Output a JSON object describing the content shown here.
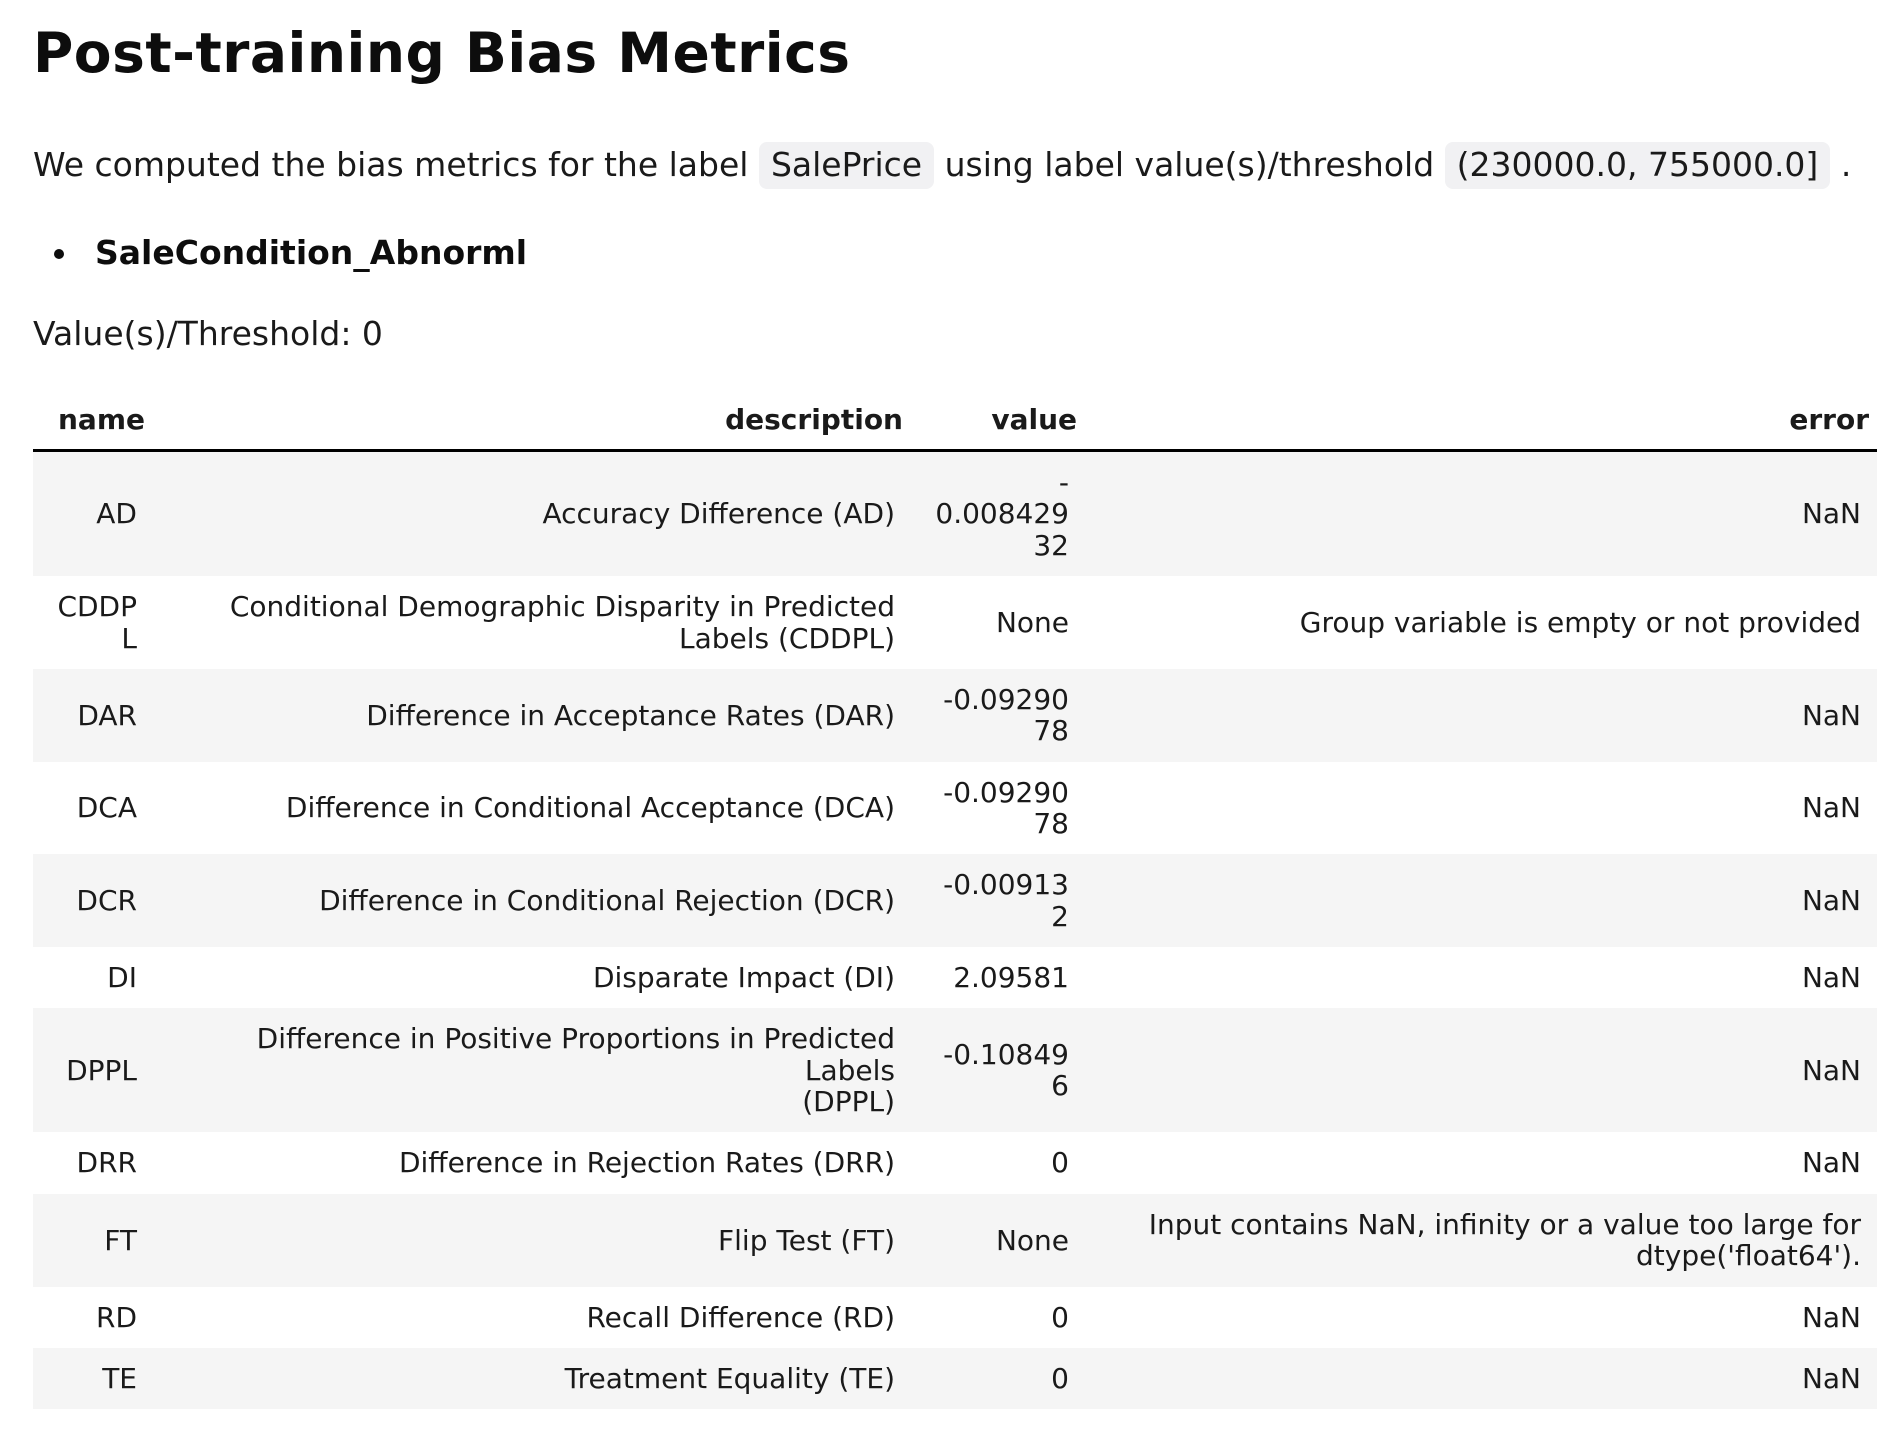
{
  "page": {
    "title": "Post-training Bias Metrics",
    "intro": {
      "text_before": "We computed the bias metrics for the label",
      "label_code": "SalePrice",
      "text_middle": "using label value(s)/threshold",
      "threshold_code": "(230000.0, 755000.0]",
      "text_after": "."
    },
    "facet_name": "SaleCondition_Abnorml",
    "threshold_line": "Value(s)/Threshold: 0"
  },
  "table": {
    "columns": [
      "name",
      "description",
      "value",
      "error"
    ],
    "rows": [
      {
        "name": "AD",
        "description": "Accuracy Difference (AD)",
        "value": "-\n0.00842932",
        "error": "NaN"
      },
      {
        "name": "CDDPL",
        "description": "Conditional Demographic Disparity in Predicted\nLabels (CDDPL)",
        "value": "None",
        "error": "Group variable is empty or not provided"
      },
      {
        "name": "DAR",
        "description": "Difference in Acceptance Rates (DAR)",
        "value": "-0.0929078",
        "error": "NaN"
      },
      {
        "name": "DCA",
        "description": "Difference in Conditional Acceptance (DCA)",
        "value": "-0.0929078",
        "error": "NaN"
      },
      {
        "name": "DCR",
        "description": "Difference in Conditional Rejection (DCR)",
        "value": "-0.009132",
        "error": "NaN"
      },
      {
        "name": "DI",
        "description": "Disparate Impact (DI)",
        "value": "2.09581",
        "error": "NaN"
      },
      {
        "name": "DPPL",
        "description": "Difference in Positive Proportions in Predicted Labels\n(DPPL)",
        "value": "-0.108496",
        "error": "NaN"
      },
      {
        "name": "DRR",
        "description": "Difference in Rejection Rates (DRR)",
        "value": "0",
        "error": "NaN"
      },
      {
        "name": "FT",
        "description": "Flip Test (FT)",
        "value": "None",
        "error": "Input contains NaN, infinity or a value too large for\ndtype('float64')."
      },
      {
        "name": "RD",
        "description": "Recall Difference (RD)",
        "value": "0",
        "error": "NaN"
      },
      {
        "name": "TE",
        "description": "Treatment Equality (TE)",
        "value": "0",
        "error": "NaN"
      }
    ]
  },
  "colors": {
    "stripe_row_bg": "#f5f5f5",
    "code_chip_bg": "#f1f1f3",
    "header_rule": "#000000",
    "text": "#1a1a1a"
  }
}
